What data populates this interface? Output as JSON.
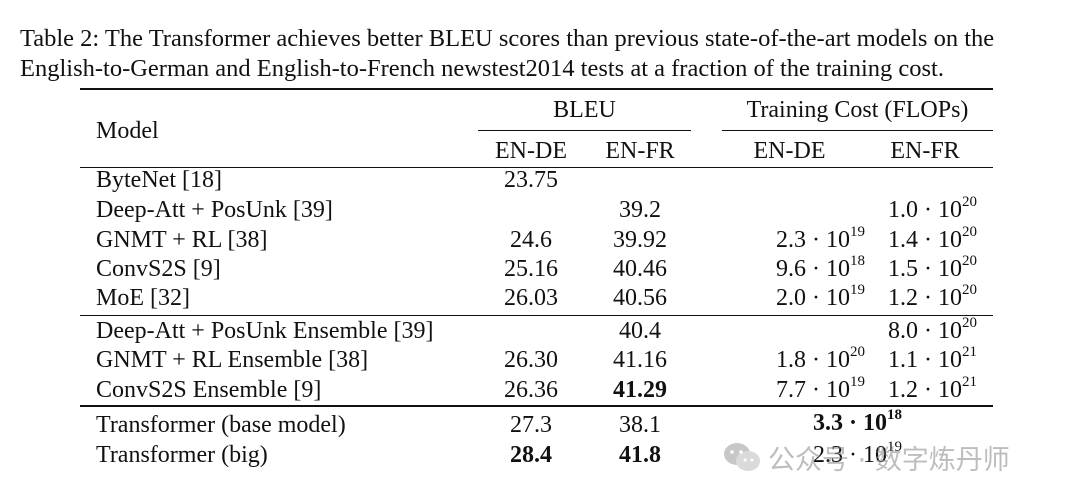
{
  "caption": {
    "line1": "Table 2: The Transformer achieves better BLEU scores than previous state-of-the-art models on the",
    "line2": "English-to-German and English-to-French newstest2014 tests at a fraction of the training cost."
  },
  "header": {
    "model": "Model",
    "bleu": "BLEU",
    "cost": "Training Cost (FLOPs)",
    "sub": [
      "EN-DE",
      "EN-FR",
      "EN-DE",
      "EN-FR"
    ]
  },
  "rows": [
    {
      "model": "ByteNet [18]",
      "bleu_de": "23.75",
      "bleu_fr": "",
      "cost_de": {
        "m": "",
        "e": ""
      },
      "cost_fr": {
        "m": "",
        "e": ""
      }
    },
    {
      "model": "Deep-Att + PosUnk [39]",
      "bleu_de": "",
      "bleu_fr": "39.2",
      "cost_de": {
        "m": "",
        "e": ""
      },
      "cost_fr": {
        "m": "1.0 · 10",
        "e": "20"
      }
    },
    {
      "model": "GNMT + RL [38]",
      "bleu_de": "24.6",
      "bleu_fr": "39.92",
      "cost_de": {
        "m": "2.3 · 10",
        "e": "19"
      },
      "cost_fr": {
        "m": "1.4 · 10",
        "e": "20"
      }
    },
    {
      "model": "ConvS2S [9]",
      "bleu_de": "25.16",
      "bleu_fr": "40.46",
      "cost_de": {
        "m": "9.6 · 10",
        "e": "18"
      },
      "cost_fr": {
        "m": "1.5 · 10",
        "e": "20"
      }
    },
    {
      "model": "MoE [32]",
      "bleu_de": "26.03",
      "bleu_fr": "40.56",
      "cost_de": {
        "m": "2.0 · 10",
        "e": "19"
      },
      "cost_fr": {
        "m": "1.2 · 10",
        "e": "20"
      }
    },
    {
      "model": "Deep-Att + PosUnk Ensemble [39]",
      "bleu_de": "",
      "bleu_fr": "40.4",
      "cost_de": {
        "m": "",
        "e": ""
      },
      "cost_fr": {
        "m": "8.0 · 10",
        "e": "20"
      }
    },
    {
      "model": "GNMT + RL Ensemble [38]",
      "bleu_de": "26.30",
      "bleu_fr": "41.16",
      "cost_de": {
        "m": "1.8 · 10",
        "e": "20"
      },
      "cost_fr": {
        "m": "1.1 · 10",
        "e": "21"
      }
    },
    {
      "model": "ConvS2S Ensemble [9]",
      "bleu_de": "26.36",
      "bleu_fr": "41.29",
      "cost_de": {
        "m": "7.7 · 10",
        "e": "19"
      },
      "cost_fr": {
        "m": "1.2 · 10",
        "e": "21"
      }
    },
    {
      "model": "Transformer (base model)",
      "bleu_de": "27.3",
      "bleu_fr": "38.1",
      "cost_span": {
        "m": "3.3 · 10",
        "e": "18"
      }
    },
    {
      "model": "Transformer (big)",
      "bleu_de": "28.4",
      "bleu_fr": "41.8",
      "cost_span": {
        "m": "2.3 · 10",
        "e": "19"
      }
    }
  ],
  "watermark": "公众号 · 数字炼丹师"
}
